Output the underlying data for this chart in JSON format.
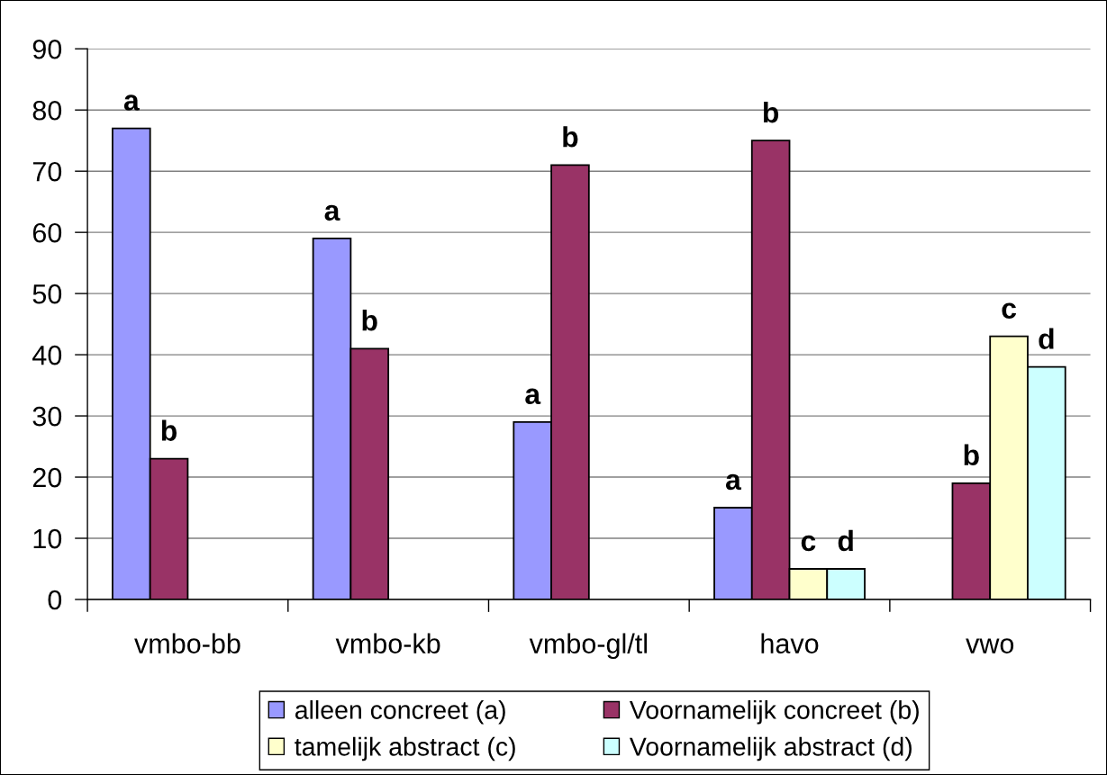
{
  "chart_data": {
    "type": "bar",
    "categories": [
      "vmbo-bb",
      "vmbo-kb",
      "vmbo-gl/tl",
      "havo",
      "vwo"
    ],
    "series": [
      {
        "name": "alleen concreet (a)",
        "color": "#9999ff",
        "values": [
          77,
          59,
          29,
          15,
          null
        ],
        "value_labels": [
          "a",
          "a",
          "a",
          "a",
          null
        ]
      },
      {
        "name": "Voornamelijk concreet (b)",
        "color": "#993366",
        "values": [
          23,
          41,
          71,
          75,
          19
        ],
        "value_labels": [
          "b",
          "b",
          "b",
          "b",
          "b"
        ]
      },
      {
        "name": "tamelijk abstract (c)",
        "color": "#ffffcc",
        "values": [
          null,
          null,
          null,
          5,
          43
        ],
        "value_labels": [
          null,
          null,
          null,
          "c",
          "c"
        ]
      },
      {
        "name": "Voornamelijk abstract (d)",
        "color": "#ccffff",
        "values": [
          null,
          null,
          null,
          5,
          38
        ],
        "value_labels": [
          null,
          null,
          null,
          "d",
          "d"
        ]
      }
    ],
    "ylim": [
      0,
      90
    ],
    "yticks": [
      0,
      10,
      20,
      30,
      40,
      50,
      60,
      70,
      80,
      90
    ],
    "grid": "y",
    "legend": "bottom"
  }
}
